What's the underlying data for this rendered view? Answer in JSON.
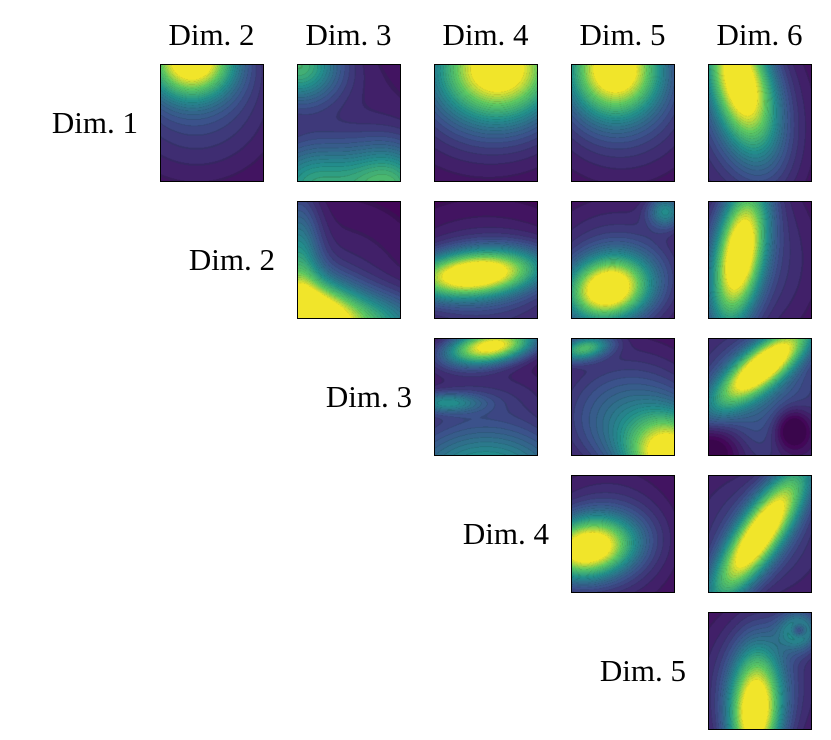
{
  "figure": {
    "kind": "pairwise-contour-matrix",
    "description": "Upper-triangular matrix of pairwise 2D filled contour plots (viridis colormap) between six dimensions. Column headers along the top, row labels stepping diagonally down the left of each row."
  },
  "grid": {
    "col_headers": [
      "Dim. 2",
      "Dim. 3",
      "Dim. 4",
      "Dim. 5",
      "Dim. 6"
    ],
    "row_labels": [
      "Dim. 1",
      "Dim. 2",
      "Dim. 3",
      "Dim. 4",
      "Dim. 5"
    ]
  },
  "chart_data": {
    "type": "heatmap",
    "title": "",
    "colormap": "viridis",
    "viridis_stops": [
      [
        0.0,
        [
          68,
          1,
          84
        ]
      ],
      [
        0.25,
        [
          59,
          82,
          139
        ]
      ],
      [
        0.5,
        [
          33,
          145,
          140
        ]
      ],
      [
        0.75,
        [
          94,
          201,
          98
        ]
      ],
      [
        1.0,
        [
          253,
          231,
          37
        ]
      ]
    ],
    "contour_levels": 26,
    "rows": [
      "Dim. 1",
      "Dim. 2",
      "Dim. 3",
      "Dim. 4",
      "Dim. 5"
    ],
    "cols": [
      "Dim. 2",
      "Dim. 3",
      "Dim. 4",
      "Dim. 5",
      "Dim. 6"
    ],
    "cells": [
      {
        "row": "Dim. 1",
        "col": "Dim. 2",
        "peak": "bright maximum at top edge, left of center",
        "blobs": [
          [
            0.3,
            -0.05,
            0.28,
            0.22,
            0,
            1.05
          ],
          [
            0.35,
            0.3,
            0.6,
            0.5,
            0,
            0.22
          ]
        ]
      },
      {
        "row": "Dim. 1",
        "col": "Dim. 3",
        "peak": "dark center; greenish corners top-left and along bottom",
        "blobs": [
          [
            0.0,
            0.0,
            0.28,
            0.22,
            0,
            0.6
          ],
          [
            0.15,
            1.05,
            0.35,
            0.25,
            0,
            0.5
          ],
          [
            0.9,
            1.05,
            0.3,
            0.25,
            0,
            0.58
          ],
          [
            0.5,
            0.5,
            0.75,
            0.65,
            0,
            0.1
          ]
        ]
      },
      {
        "row": "Dim. 1",
        "col": "Dim. 4",
        "peak": "bright maximum at top, right of center; dark bottom-left",
        "blobs": [
          [
            0.62,
            0.02,
            0.4,
            0.3,
            0,
            1.02
          ],
          [
            0.5,
            0.3,
            0.7,
            0.5,
            0,
            0.18
          ]
        ]
      },
      {
        "row": "Dim. 1",
        "col": "Dim. 5",
        "peak": "bright concentric maximum at top center; dark bottom",
        "blobs": [
          [
            0.42,
            0.02,
            0.3,
            0.28,
            0,
            1.05
          ],
          [
            0.5,
            0.35,
            0.6,
            0.5,
            0,
            0.2
          ]
        ]
      },
      {
        "row": "Dim. 1",
        "col": "Dim. 6",
        "peak": "tilted bright band upper-left to center-left; dark right side",
        "blobs": [
          [
            0.3,
            0.12,
            0.2,
            0.42,
            -18,
            1.05
          ],
          [
            0.35,
            0.5,
            0.5,
            0.6,
            0,
            0.2
          ]
        ]
      },
      {
        "row": "Dim. 2",
        "col": "Dim. 3",
        "peak": "bright maximum at bottom-left corner; green along bottom and left edges; dark top",
        "blobs": [
          [
            0.08,
            1.0,
            0.3,
            0.22,
            0,
            1.0
          ],
          [
            0.55,
            1.05,
            0.5,
            0.18,
            0,
            0.55
          ],
          [
            0.0,
            0.6,
            0.15,
            0.45,
            0,
            0.45
          ],
          [
            0.4,
            0.7,
            0.6,
            0.5,
            0,
            0.12
          ]
        ]
      },
      {
        "row": "Dim. 2",
        "col": "Dim. 4",
        "peak": "horizontally elongated bright band just below middle, pointed toward left; dark top",
        "blobs": [
          [
            0.38,
            0.62,
            0.42,
            0.13,
            -5,
            1.05
          ],
          [
            0.5,
            0.7,
            0.6,
            0.4,
            0,
            0.22
          ]
        ]
      },
      {
        "row": "Dim. 2",
        "col": "Dim. 5",
        "peak": "bright blob lower-left of center; small teal swirl top-right corner",
        "blobs": [
          [
            0.35,
            0.75,
            0.27,
            0.18,
            -10,
            1.05
          ],
          [
            0.45,
            0.6,
            0.55,
            0.45,
            0,
            0.22
          ],
          [
            0.92,
            0.08,
            0.12,
            0.1,
            0,
            0.4
          ]
        ]
      },
      {
        "row": "Dim. 2",
        "col": "Dim. 6",
        "peak": "vertically elongated bright band left of center leaning toward bottom-left; dark right",
        "blobs": [
          [
            0.3,
            0.45,
            0.16,
            0.42,
            12,
            1.05
          ],
          [
            0.4,
            0.5,
            0.5,
            0.55,
            0,
            0.2
          ]
        ]
      },
      {
        "row": "Dim. 3",
        "col": "Dim. 4",
        "peak": "flat bright band along top, right of center; dark wavy middle; teal bottom",
        "blobs": [
          [
            0.55,
            0.06,
            0.3,
            0.1,
            -8,
            1.05
          ],
          [
            0.5,
            1.15,
            0.6,
            0.3,
            0,
            0.55
          ],
          [
            0.1,
            0.55,
            0.25,
            0.06,
            0,
            0.35
          ],
          [
            0.5,
            0.45,
            0.6,
            0.2,
            0,
            0.12
          ]
        ]
      },
      {
        "row": "Dim. 3",
        "col": "Dim. 5",
        "peak": "bright maximum at bottom-right corner; faint bright streak top-left; dark middle",
        "blobs": [
          [
            0.97,
            1.0,
            0.28,
            0.22,
            0,
            1.0
          ],
          [
            0.12,
            0.08,
            0.18,
            0.07,
            -10,
            0.6
          ],
          [
            0.6,
            0.75,
            0.45,
            0.3,
            0,
            0.3
          ],
          [
            0.5,
            0.4,
            0.6,
            0.4,
            0,
            0.12
          ]
        ]
      },
      {
        "row": "Dim. 3",
        "col": "Dim. 6",
        "peak": "diagonal bright band from upper-right toward center-left; dark spot lower-right; dark corners",
        "blobs": [
          [
            0.55,
            0.22,
            0.38,
            0.12,
            -35,
            1.05
          ],
          [
            0.5,
            0.5,
            0.55,
            0.5,
            0,
            0.3
          ],
          [
            0.82,
            0.78,
            0.13,
            0.13,
            0,
            -0.3
          ],
          [
            0.05,
            0.95,
            0.2,
            0.15,
            0,
            -0.2
          ]
        ]
      },
      {
        "row": "Dim. 4",
        "col": "Dim. 5",
        "peak": "bright blob at left edge below middle; dark top-right",
        "blobs": [
          [
            0.15,
            0.62,
            0.3,
            0.17,
            -8,
            1.05
          ],
          [
            0.35,
            0.55,
            0.5,
            0.45,
            0,
            0.2
          ]
        ]
      },
      {
        "row": "Dim. 4",
        "col": "Dim. 6",
        "peak": "long diagonal bright band from bottom-left to top-right; dark opposite corners",
        "blobs": [
          [
            0.5,
            0.5,
            0.5,
            0.14,
            -52,
            1.05
          ],
          [
            0.5,
            0.5,
            0.6,
            0.5,
            0,
            0.2
          ]
        ]
      },
      {
        "row": "Dim. 5",
        "col": "Dim. 6",
        "peak": "vertical bright band at bottom center; teal swirl top-right; dark upper corners",
        "blobs": [
          [
            0.45,
            0.85,
            0.17,
            0.35,
            4,
            1.05
          ],
          [
            0.5,
            0.6,
            0.5,
            0.5,
            0,
            0.2
          ],
          [
            0.88,
            0.15,
            0.14,
            0.12,
            0,
            0.45
          ],
          [
            0.88,
            0.15,
            0.05,
            0.04,
            0,
            -0.3
          ]
        ]
      }
    ]
  }
}
